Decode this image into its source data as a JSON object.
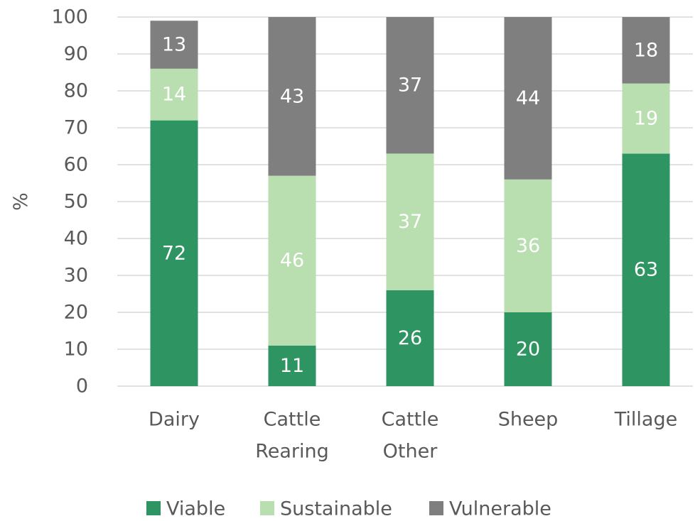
{
  "chart_data": {
    "type": "bar",
    "stacked": true,
    "categories": [
      [
        "Dairy"
      ],
      [
        "Cattle",
        "Rearing"
      ],
      [
        "Cattle",
        "Other"
      ],
      [
        "Sheep"
      ],
      [
        "Tillage"
      ]
    ],
    "series": [
      {
        "name": "Viable",
        "values": [
          72,
          11,
          26,
          20,
          63
        ],
        "color": "#2e9462",
        "label_color": "#ffffff"
      },
      {
        "name": "Sustainable",
        "values": [
          14,
          46,
          37,
          36,
          19
        ],
        "color": "#b9deb0",
        "label_color": "#ffffff"
      },
      {
        "name": "Vulnerable",
        "values": [
          13,
          43,
          37,
          44,
          18
        ],
        "color": "#7f7f7f",
        "label_color": "#ffffff"
      }
    ],
    "ylabel": "%",
    "ylim": [
      0,
      100
    ],
    "yticks": [
      0,
      10,
      20,
      30,
      40,
      50,
      60,
      70,
      80,
      90,
      100
    ],
    "grid": true,
    "legend": "bottom-center"
  }
}
